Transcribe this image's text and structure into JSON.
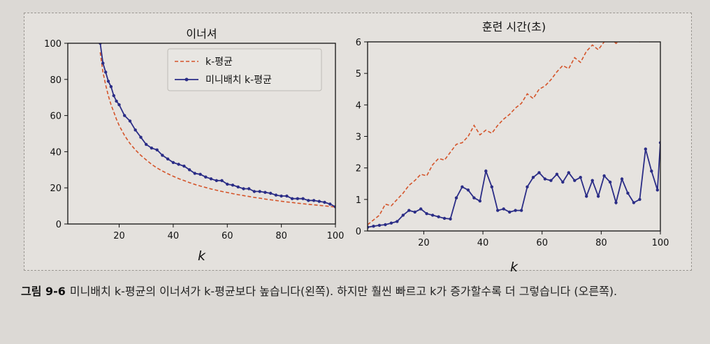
{
  "caption": {
    "label": "그림 9-6",
    "text": "미니배치 k-평균의 이너셔가 k-평균보다 높습니다(왼쪽). 하지만 훨씬 빠르고 k가 증가할수록 더 그렇습니다 (오른쪽)."
  },
  "colors": {
    "kmeans": "#d4542a",
    "minibatch": "#2b2d86",
    "axes": "#111111",
    "plot_bg": "#e6e3df"
  },
  "chart_data": [
    {
      "type": "line",
      "title": "이너셔",
      "xlabel": "k",
      "ylabel": "",
      "xlim": [
        1,
        100
      ],
      "ylim": [
        0,
        100
      ],
      "xticks": [
        20,
        40,
        60,
        80,
        100
      ],
      "yticks": [
        0,
        20,
        40,
        60,
        80,
        100
      ],
      "grid": false,
      "legend": "top-center",
      "x": [
        13,
        14,
        15,
        16,
        17,
        18,
        19,
        20,
        22,
        24,
        26,
        28,
        30,
        32,
        34,
        36,
        38,
        40,
        42,
        44,
        46,
        48,
        50,
        52,
        54,
        56,
        58,
        60,
        62,
        64,
        66,
        68,
        70,
        72,
        74,
        76,
        78,
        80,
        82,
        84,
        86,
        88,
        90,
        92,
        94,
        96,
        98,
        100
      ],
      "series": [
        {
          "name": "k-평균",
          "style": "dashed",
          "values": [
            95,
            84,
            77,
            71,
            66,
            62,
            58,
            54.5,
            49,
            44.5,
            41,
            38,
            35.5,
            33,
            31,
            29.3,
            27.8,
            26.4,
            25.1,
            24,
            22.9,
            21.9,
            21,
            20.2,
            19.4,
            18.7,
            18,
            17.4,
            16.8,
            16.2,
            15.7,
            15.2,
            14.7,
            14.3,
            13.8,
            13.4,
            13,
            12.6,
            12.2,
            11.9,
            11.5,
            11.2,
            10.9,
            10.6,
            10.3,
            10,
            9.7,
            9.4
          ]
        },
        {
          "name": "미니배치 k-평균",
          "style": "solid-dots",
          "values": [
            100,
            89,
            84,
            79,
            76,
            71,
            68,
            66,
            60,
            57,
            52,
            48,
            44,
            42,
            41,
            38,
            36,
            34,
            33,
            32,
            30,
            28,
            27.5,
            26,
            25,
            24,
            24,
            22,
            21.5,
            20.5,
            19.5,
            19.5,
            18,
            18,
            17.5,
            17,
            16,
            15.5,
            15.5,
            14,
            14,
            14,
            13,
            13,
            12.5,
            12,
            11,
            9.5
          ]
        }
      ]
    },
    {
      "type": "line",
      "title": "훈련 시간(초)",
      "xlabel": "k",
      "ylabel": "",
      "xlim": [
        1,
        100
      ],
      "ylim": [
        0,
        6
      ],
      "xticks": [
        20,
        40,
        60,
        80,
        100
      ],
      "yticks": [
        0,
        1,
        2,
        3,
        4,
        5,
        6
      ],
      "grid": false,
      "x": [
        1,
        3,
        5,
        7,
        9,
        11,
        13,
        15,
        17,
        19,
        21,
        23,
        25,
        27,
        29,
        31,
        33,
        35,
        37,
        39,
        41,
        43,
        45,
        47,
        49,
        51,
        53,
        55,
        57,
        59,
        61,
        63,
        65,
        67,
        69,
        71,
        73,
        75,
        77,
        79,
        81,
        83,
        85,
        87,
        89,
        91,
        93,
        95,
        97,
        99,
        100
      ],
      "series": [
        {
          "name": "k-평균",
          "style": "dashed",
          "values": [
            0.2,
            0.35,
            0.5,
            0.85,
            0.8,
            1.0,
            1.2,
            1.45,
            1.6,
            1.8,
            1.75,
            2.1,
            2.3,
            2.25,
            2.5,
            2.75,
            2.8,
            3.0,
            3.35,
            3.05,
            3.2,
            3.1,
            3.35,
            3.55,
            3.7,
            3.9,
            4.05,
            4.35,
            4.2,
            4.5,
            4.6,
            4.8,
            5.05,
            5.25,
            5.15,
            5.5,
            5.35,
            5.7,
            5.9,
            5.75,
            6.0,
            6.15,
            5.95,
            6.1,
            6.05,
            6.1,
            6.0,
            6.1,
            6.1,
            6.1,
            6.1
          ]
        },
        {
          "name": "미니배치 k-평균",
          "style": "solid-dots",
          "values": [
            0.12,
            0.15,
            0.18,
            0.2,
            0.25,
            0.3,
            0.5,
            0.65,
            0.6,
            0.7,
            0.55,
            0.5,
            0.45,
            0.4,
            0.38,
            1.05,
            1.4,
            1.3,
            1.05,
            0.95,
            1.9,
            1.4,
            0.65,
            0.7,
            0.6,
            0.65,
            0.65,
            1.4,
            1.7,
            1.85,
            1.65,
            1.6,
            1.8,
            1.55,
            1.85,
            1.6,
            1.7,
            1.1,
            1.6,
            1.1,
            1.75,
            1.55,
            0.9,
            1.65,
            1.2,
            0.9,
            1.0,
            2.6,
            1.9,
            1.3,
            2.8
          ]
        }
      ]
    }
  ]
}
